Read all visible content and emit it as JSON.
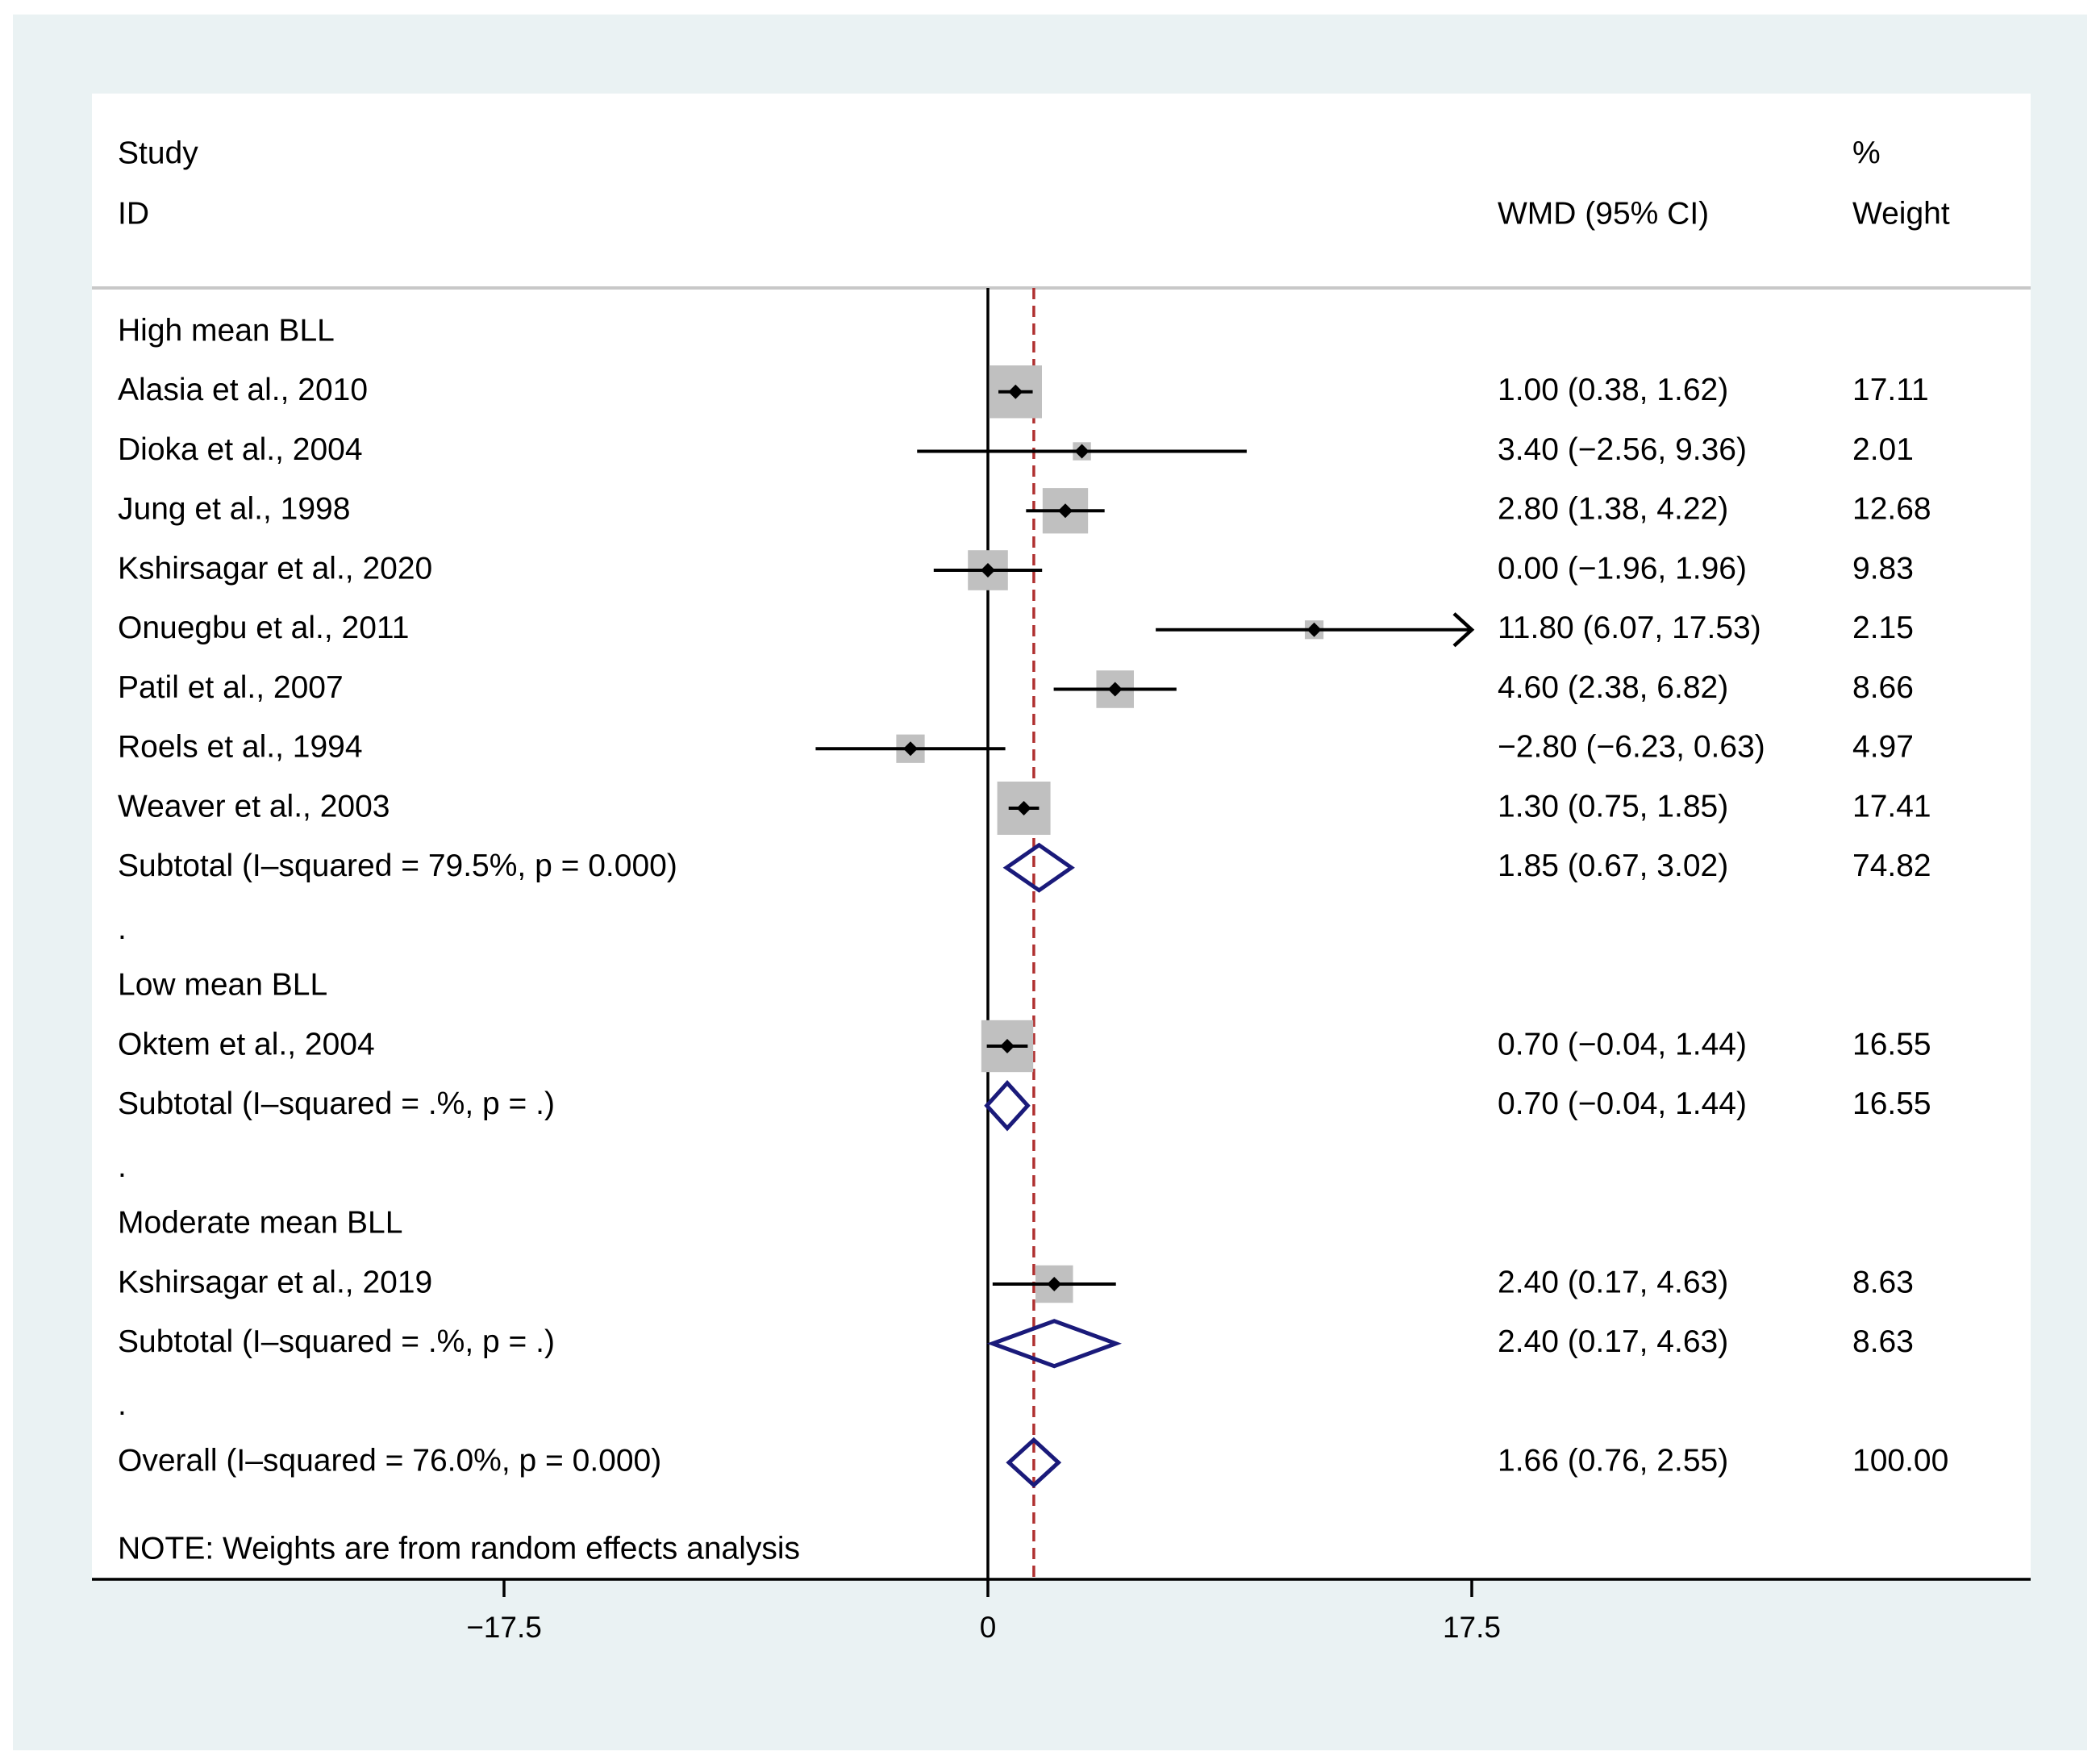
{
  "chart_data": {
    "type": "forest",
    "headers": {
      "study_line1": "Study",
      "study_line2": "ID",
      "effect": "WMD (95% CI)",
      "weight_line1": "%",
      "weight_line2": "Weight"
    },
    "x_axis": {
      "ticks": [
        -17.5,
        0,
        17.5
      ],
      "tick_labels": [
        "−17.5",
        "0",
        "17.5"
      ],
      "range": [
        -32.5,
        37.7
      ]
    },
    "null_line": 0,
    "overall_line": 1.66,
    "rows": [
      {
        "kind": "group",
        "label": "High mean BLL"
      },
      {
        "kind": "study",
        "label": "Alasia et al., 2010",
        "est": 1.0,
        "lo": 0.38,
        "hi": 1.62,
        "ci_text": "1.00 (0.38, 1.62)",
        "weight": 17.11,
        "weight_text": "17.11"
      },
      {
        "kind": "study",
        "label": "Dioka et al., 2004",
        "est": 3.4,
        "lo": -2.56,
        "hi": 9.36,
        "ci_text": "3.40 (−2.56, 9.36)",
        "weight": 2.01,
        "weight_text": "2.01"
      },
      {
        "kind": "study",
        "label": "Jung et al., 1998",
        "est": 2.8,
        "lo": 1.38,
        "hi": 4.22,
        "ci_text": "2.80 (1.38, 4.22)",
        "weight": 12.68,
        "weight_text": "12.68"
      },
      {
        "kind": "study",
        "label": "Kshirsagar et al., 2020",
        "est": 0.0,
        "lo": -1.96,
        "hi": 1.96,
        "ci_text": "0.00 (−1.96, 1.96)",
        "weight": 9.83,
        "weight_text": "9.83"
      },
      {
        "kind": "study",
        "label": "Onuegbu et al., 2011",
        "est": 11.8,
        "lo": 6.07,
        "hi": 17.53,
        "ci_text": "11.80 (6.07, 17.53)",
        "weight": 2.15,
        "weight_text": "2.15",
        "arrow": true
      },
      {
        "kind": "study",
        "label": "Patil et al., 2007",
        "est": 4.6,
        "lo": 2.38,
        "hi": 6.82,
        "ci_text": "4.60 (2.38, 6.82)",
        "weight": 8.66,
        "weight_text": "8.66"
      },
      {
        "kind": "study",
        "label": "Roels et al., 1994",
        "est": -2.8,
        "lo": -6.23,
        "hi": 0.63,
        "ci_text": "−2.80 (−6.23, 0.63)",
        "weight": 4.97,
        "weight_text": "4.97"
      },
      {
        "kind": "study",
        "label": "Weaver et al., 2003",
        "est": 1.3,
        "lo": 0.75,
        "hi": 1.85,
        "ci_text": "1.30 (0.75, 1.85)",
        "weight": 17.41,
        "weight_text": "17.41"
      },
      {
        "kind": "subtotal",
        "label": "Subtotal  (I–squared = 79.5%, p = 0.000)",
        "est": 1.85,
        "lo": 0.67,
        "hi": 3.02,
        "ci_text": "1.85 (0.67, 3.02)",
        "weight_text": "74.82"
      },
      {
        "kind": "dot",
        "label": "."
      },
      {
        "kind": "group",
        "label": "Low mean BLL"
      },
      {
        "kind": "study",
        "label": "Oktem et al., 2004",
        "est": 0.7,
        "lo": -0.04,
        "hi": 1.44,
        "ci_text": "0.70 (−0.04, 1.44)",
        "weight": 16.55,
        "weight_text": "16.55"
      },
      {
        "kind": "subtotal",
        "label": "Subtotal  (I–squared = .%, p = .)",
        "est": 0.7,
        "lo": -0.04,
        "hi": 1.44,
        "ci_text": "0.70 (−0.04, 1.44)",
        "weight_text": "16.55"
      },
      {
        "kind": "dot",
        "label": "."
      },
      {
        "kind": "group",
        "label": "Moderate mean BLL"
      },
      {
        "kind": "study",
        "label": "Kshirsagar et al., 2019",
        "est": 2.4,
        "lo": 0.17,
        "hi": 4.63,
        "ci_text": "2.40 (0.17, 4.63)",
        "weight": 8.63,
        "weight_text": "8.63"
      },
      {
        "kind": "subtotal",
        "label": "Subtotal  (I–squared = .%, p = .)",
        "est": 2.4,
        "lo": 0.17,
        "hi": 4.63,
        "ci_text": "2.40 (0.17, 4.63)",
        "weight_text": "8.63"
      },
      {
        "kind": "dot",
        "label": "."
      },
      {
        "kind": "overall",
        "label": "Overall  (I–squared = 76.0%, p = 0.000)",
        "est": 1.66,
        "lo": 0.76,
        "hi": 2.55,
        "ci_text": "1.66 (0.76, 2.55)",
        "weight_text": "100.00"
      }
    ],
    "note": "NOTE: Weights are from random effects analysis",
    "colors": {
      "background": "#eaf2f3",
      "plot_bg": "#ffffff",
      "box": "#c0c0c0",
      "line": "#000000",
      "diamond": "#1a1a7a",
      "overall_line": "#b03030",
      "divider": "#c8c8c8"
    }
  }
}
